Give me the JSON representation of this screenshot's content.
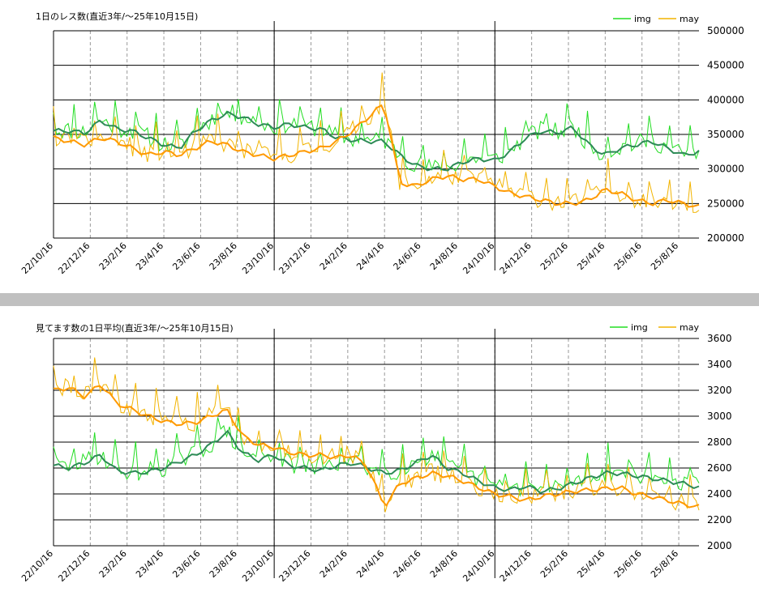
{
  "colors": {
    "img_raw": "#22dd22",
    "img_avg": "#2e8b57",
    "may_raw": "#f2b400",
    "may_avg": "#ff9900",
    "gridline": "#000000",
    "vgrid": "#999999",
    "divider": "#c0c0c0"
  },
  "chart_data": [
    {
      "type": "line",
      "title": "1日のレス数(直近3年/～25年10月15日)",
      "series": [
        {
          "name": "img",
          "values": [
            355000,
            355000,
            352000,
            370000,
            358000,
            355000,
            345000,
            335000,
            330000,
            355000,
            370000,
            380000,
            375000,
            365000,
            360000,
            365000,
            360000,
            358000,
            345000,
            342000,
            340000,
            340000,
            320000,
            305000,
            300000,
            300000,
            310000,
            315000,
            312000,
            325000,
            345000,
            355000,
            352000,
            360000,
            335000,
            320000,
            330000,
            335000,
            340000,
            330000,
            320000,
            325000
          ]
        },
        {
          "name": "may",
          "values": [
            345000,
            340000,
            335000,
            345000,
            340000,
            330000,
            320000,
            325000,
            320000,
            330000,
            340000,
            335000,
            325000,
            320000,
            315000,
            320000,
            325000,
            330000,
            340000,
            355000,
            375000,
            395000,
            280000,
            275000,
            285000,
            290000,
            285000,
            285000,
            275000,
            265000,
            260000,
            255000,
            250000,
            250000,
            255000,
            270000,
            265000,
            255000,
            250000,
            255000,
            250000,
            245000
          ]
        }
      ],
      "ylim": [
        200000,
        500000
      ],
      "yticks": [
        "500000",
        "450000",
        "400000",
        "350000",
        "300000",
        "250000",
        "200000"
      ],
      "xticks": [
        "22/10/16",
        "22/12/16",
        "23/2/16",
        "23/4/16",
        "23/6/16",
        "23/8/16",
        "23/10/16",
        "23/12/16",
        "24/2/16",
        "24/4/16",
        "24/6/16",
        "24/8/16",
        "24/10/16",
        "24/12/16",
        "25/2/16",
        "25/4/16",
        "25/6/16",
        "25/8/16"
      ],
      "legend": "top-right",
      "grid": true
    },
    {
      "type": "line",
      "title": "見てます数の1日平均(直近3年/～25年10月15日)",
      "series": [
        {
          "name": "img",
          "values": [
            2620,
            2600,
            2640,
            2700,
            2580,
            2560,
            2570,
            2600,
            2650,
            2700,
            2780,
            2880,
            2720,
            2660,
            2700,
            2620,
            2600,
            2580,
            2620,
            2640,
            2600,
            2560,
            2580,
            2640,
            2700,
            2600,
            2560,
            2500,
            2450,
            2430,
            2460,
            2420,
            2440,
            2480,
            2520,
            2560,
            2560,
            2540,
            2520,
            2500,
            2480,
            2450
          ]
        },
        {
          "name": "may",
          "values": [
            3200,
            3220,
            3150,
            3250,
            3100,
            3050,
            3000,
            2960,
            2940,
            2950,
            3000,
            3050,
            2850,
            2780,
            2760,
            2720,
            2700,
            2700,
            2680,
            2700,
            2600,
            2300,
            2480,
            2520,
            2560,
            2540,
            2500,
            2450,
            2400,
            2380,
            2350,
            2380,
            2400,
            2420,
            2430,
            2440,
            2450,
            2400,
            2380,
            2350,
            2320,
            2300
          ]
        }
      ],
      "ylim": [
        2000,
        3600
      ],
      "yticks": [
        "3600",
        "3400",
        "3200",
        "3000",
        "2800",
        "2600",
        "2400",
        "2200",
        "2000"
      ],
      "xticks": [
        "22/10/16",
        "22/12/16",
        "23/2/16",
        "23/4/16",
        "23/6/16",
        "23/8/16",
        "23/10/16",
        "23/12/16",
        "24/2/16",
        "24/4/16",
        "24/6/16",
        "24/8/16",
        "24/10/16",
        "24/12/16",
        "25/2/16",
        "25/4/16",
        "25/6/16",
        "25/8/16"
      ],
      "legend": "top-right",
      "grid": true
    }
  ]
}
